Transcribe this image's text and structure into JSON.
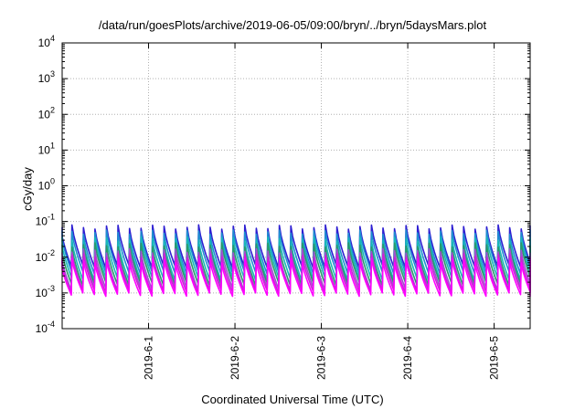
{
  "chart_data": {
    "type": "line",
    "title": "/data/run/goesPlots/archive/2019-06-05/09:00/bryn/../bryn/5daysMars.plot",
    "xlabel": "Coordinated Universal Time (UTC)",
    "ylabel": "cGy/day",
    "yscale": "log",
    "ylim": [
      0.0001,
      10000
    ],
    "xlim": [
      "2019-05-31 00:00",
      "2019-06-05 10:00"
    ],
    "y_ticks": [
      {
        "base": "10",
        "exp": "4"
      },
      {
        "base": "10",
        "exp": "3"
      },
      {
        "base": "10",
        "exp": "2"
      },
      {
        "base": "10",
        "exp": "1"
      },
      {
        "base": "10",
        "exp": "0"
      },
      {
        "base": "10",
        "exp": "-1"
      },
      {
        "base": "10",
        "exp": "-2"
      },
      {
        "base": "10",
        "exp": "-3"
      },
      {
        "base": "10",
        "exp": "-4"
      }
    ],
    "x_ticks": [
      "2019-6-1",
      "2019-6-2",
      "2019-6-3",
      "2019-6-4",
      "2019-6-5"
    ],
    "grid": true,
    "sawtooth_period_hours": 3.2,
    "series": [
      {
        "color": "#2e1fd2",
        "peak": 0.07,
        "trough": 0.0055
      },
      {
        "color": "#1f8fd0",
        "peak": 0.05,
        "trough": 0.0038
      },
      {
        "color": "#18b8b8",
        "peak": 0.032,
        "trough": 0.0025
      },
      {
        "color": "#2a9a6a",
        "peak": 0.022,
        "trough": 0.0018
      },
      {
        "color": "#a050d0",
        "peak": 0.015,
        "trough": 0.0013
      },
      {
        "color": "#d020d8",
        "peak": 0.011,
        "trough": 0.0011
      },
      {
        "color": "#ff00ff",
        "peak": 0.008,
        "trough": 0.0009
      }
    ]
  }
}
